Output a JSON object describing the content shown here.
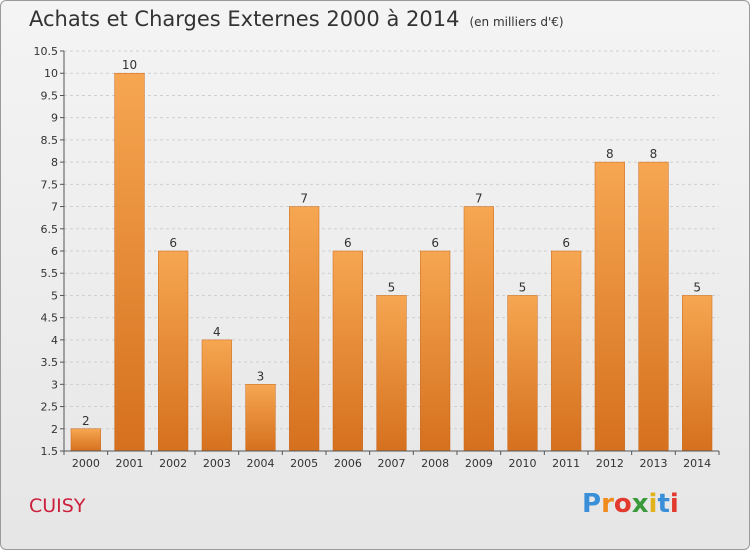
{
  "chart_data": {
    "type": "bar",
    "title": "Achats et Charges Externes 2000 à 2014",
    "subtitle": "(en milliers d'€)",
    "categories": [
      "2000",
      "2001",
      "2002",
      "2003",
      "2004",
      "2005",
      "2006",
      "2007",
      "2008",
      "2009",
      "2010",
      "2011",
      "2012",
      "2013",
      "2014"
    ],
    "values": [
      2,
      10,
      6,
      4,
      3,
      7,
      6,
      5,
      6,
      7,
      5,
      6,
      8,
      8,
      5
    ],
    "ylim": [
      1.5,
      10.5
    ],
    "yticks": [
      "1.5",
      "2",
      "2.5",
      "3",
      "3.5",
      "4",
      "4.5",
      "5",
      "5.5",
      "6",
      "6.5",
      "7",
      "7.5",
      "8",
      "8.5",
      "9",
      "9.5",
      "10",
      "10.5"
    ],
    "grid": true,
    "bar_color_top": "#f6a651",
    "bar_color_bottom": "#d5701e"
  },
  "footer": {
    "place": "CUISY",
    "logo_letters": [
      "P",
      "r",
      "o",
      "x",
      "i",
      "t",
      "i"
    ],
    "logo_colors": [
      "#3b8fd8",
      "#f08a1c",
      "#e23a2e",
      "#3a9a3c",
      "#e2b21c",
      "#3b8fd8",
      "#e23a2e"
    ]
  }
}
